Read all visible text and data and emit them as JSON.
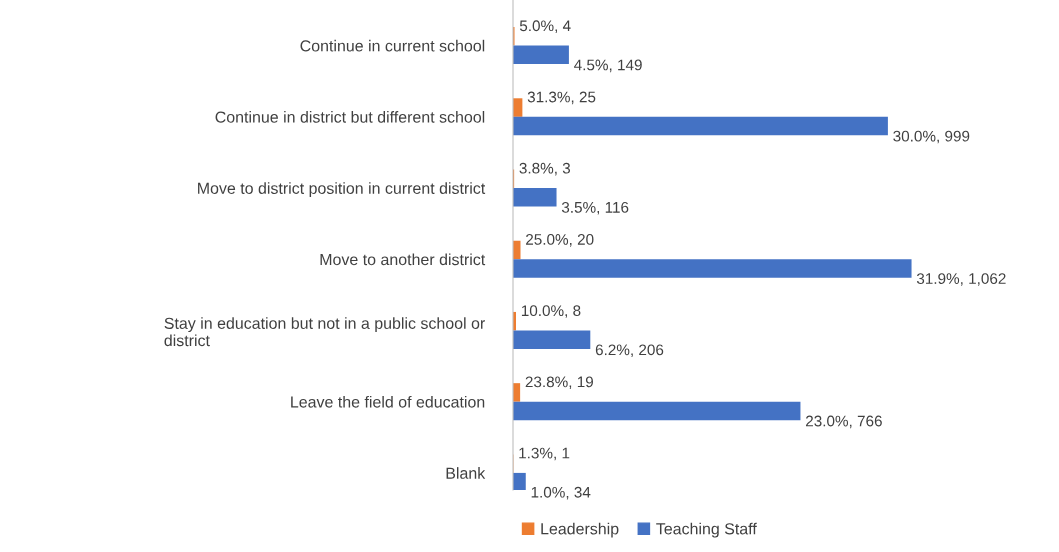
{
  "chart_data": {
    "type": "bar",
    "orientation": "horizontal",
    "categories": [
      "Continue in current school",
      "Continue in district but different school",
      "Move to district position in current district",
      "Move to another district",
      "Stay in education but not in a public school or\ndistrict",
      "Leave the field of education",
      "Blank"
    ],
    "series": [
      {
        "name": "Leadership",
        "color": "#ed7d31",
        "values": [
          4,
          25,
          3,
          20,
          8,
          19,
          1
        ],
        "value_labels": [
          "5.0%, 4",
          "31.3%, 25",
          "3.8%, 3",
          "25.0%, 20",
          "10.0%, 8",
          "23.8%, 19",
          "1.3%, 1"
        ]
      },
      {
        "name": "Teaching Staff",
        "color": "#4472c4",
        "values": [
          149,
          999,
          116,
          1062,
          206,
          766,
          34
        ],
        "value_labels": [
          "4.5%, 149",
          "30.0%, 999",
          "3.5%, 116",
          "31.9%, 1,062",
          "6.2%, 206",
          "23.0%, 766",
          "1.0%, 34"
        ]
      }
    ],
    "legend": "bottom",
    "grid": false
  }
}
